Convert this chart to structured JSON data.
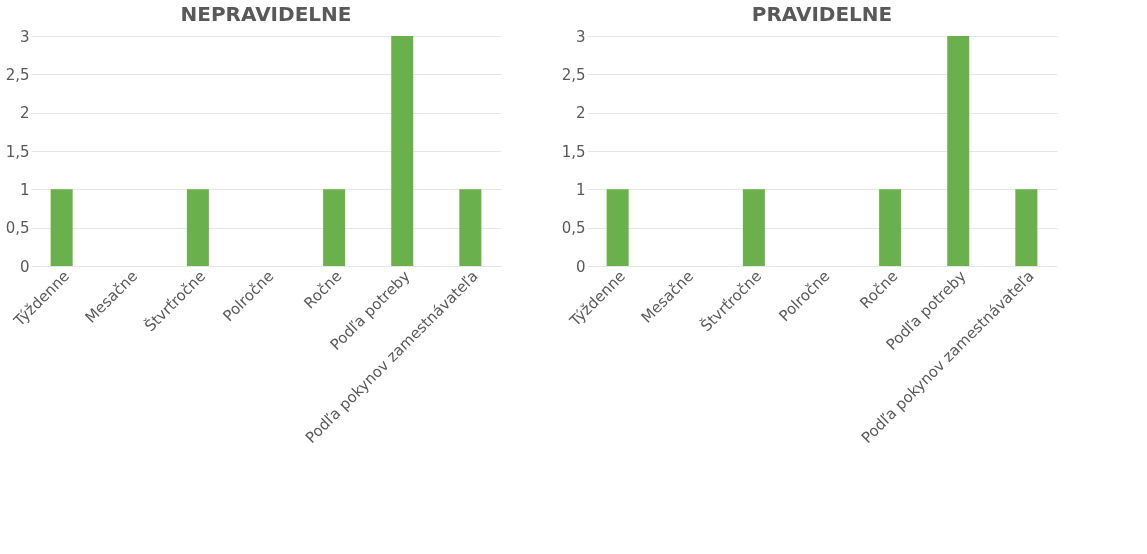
{
  "chart_data": [
    {
      "type": "bar",
      "title": "NEPRAVIDELNE",
      "categories": [
        "Týždenne",
        "Mesačne",
        "Štvrťročne",
        "Polročne",
        "Ročne",
        "Podľa potreby",
        "Podľa pokynov zamestnávateľa"
      ],
      "series": [
        {
          "color": "#6ab04c",
          "values": [
            1,
            0,
            1,
            0,
            1,
            3,
            1
          ]
        }
      ],
      "ylim": [
        0,
        3
      ],
      "yticks": [
        0,
        {
          "value": 0.5,
          "label": "0,5"
        },
        1,
        {
          "value": 1.5,
          "label": "1,5"
        },
        2,
        {
          "value": 2.5,
          "label": "2,5"
        },
        3
      ],
      "grid": "y",
      "legend": false
    },
    {
      "type": "bar",
      "title": "PRAVIDELNE",
      "categories": [
        "Týždenne",
        "Mesačne",
        "Štvrťročne",
        "Polročne",
        "Ročne",
        "Podľa potreby",
        "Podľa pokynov zamestnávateľa"
      ],
      "series": [
        {
          "color": "#6ab04c",
          "values": [
            1,
            0,
            1,
            0,
            1,
            3,
            1
          ]
        }
      ],
      "ylim": [
        0,
        3
      ],
      "yticks": [
        0,
        {
          "value": 0.5,
          "label": "0,5"
        },
        1,
        {
          "value": 1.5,
          "label": "1,5"
        },
        2,
        {
          "value": 2.5,
          "label": "2,5"
        },
        3
      ],
      "grid": "y",
      "legend": false
    }
  ]
}
